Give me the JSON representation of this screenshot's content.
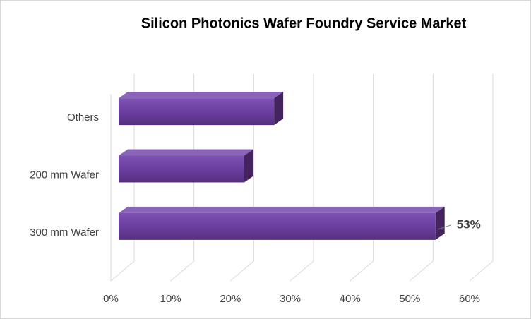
{
  "chart_data": {
    "type": "bar",
    "orientation": "horizontal",
    "title": "Silicon Photonics Wafer Foundry Service Market",
    "categories": [
      "300 mm Wafer",
      "200 mm Wafer",
      "Others"
    ],
    "values": [
      53,
      21,
      26
    ],
    "value_labels": [
      "53%",
      null,
      null
    ],
    "color": "#6b3fa0",
    "xlim": [
      0,
      60
    ],
    "xticks": [
      {
        "value": 0,
        "label": "0%"
      },
      {
        "value": 10,
        "label": "10%"
      },
      {
        "value": 20,
        "label": "20%"
      },
      {
        "value": 30,
        "label": "30%"
      },
      {
        "value": 40,
        "label": "40%"
      },
      {
        "value": 50,
        "label": "50%"
      },
      {
        "value": 60,
        "label": "60%"
      }
    ],
    "grid": true
  }
}
